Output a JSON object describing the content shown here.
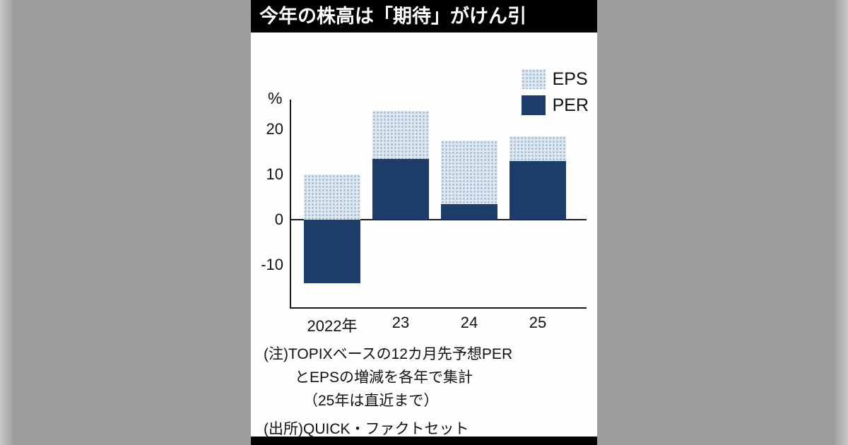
{
  "title": "今年の株高は「期待」がけん引",
  "colors": {
    "per_fill": "#1e3c69",
    "eps_fill": "#dde7f0",
    "eps_dot": "#a3bbd2",
    "side_bg": "#9d9d9d",
    "title_bg": "#000000",
    "title_text": "#ffffff"
  },
  "chart_data": {
    "type": "bar",
    "stacked": true,
    "title": "今年の株高は「期待」がけん引",
    "unit_label": "%",
    "categories": [
      "2022年",
      "23",
      "24",
      "25"
    ],
    "series": [
      {
        "name": "PER",
        "color": "#1e3c69",
        "values": [
          -14,
          13.5,
          3.5,
          13
        ]
      },
      {
        "name": "EPS",
        "color": "#dde7f0",
        "values": [
          10,
          10.5,
          14,
          5.5
        ]
      }
    ],
    "totals_by_year": [
      -4,
      24,
      17.5,
      18.5
    ],
    "yticks": [
      20,
      10,
      0,
      -10
    ],
    "ylim": [
      -17,
      27
    ],
    "legend": [
      "EPS",
      "PER"
    ],
    "legend_position": "top-right",
    "grid": false
  },
  "notes": {
    "line1": "(注)TOPIXベースの12カ月先予想PER",
    "line2": "とEPSの増減を各年で集計",
    "line3": "（25年は直近まで）",
    "source": "(出所)QUICK・ファクトセット"
  }
}
